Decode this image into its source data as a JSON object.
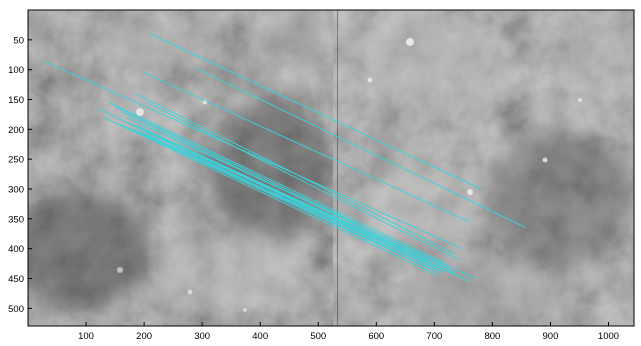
{
  "figure": {
    "x_ticks": [
      "100",
      "200",
      "300",
      "400",
      "500",
      "600",
      "700",
      "800",
      "900",
      "1000"
    ],
    "y_ticks": [
      "50",
      "100",
      "150",
      "200",
      "250",
      "300",
      "350",
      "400",
      "450",
      "500"
    ],
    "colors": {
      "match_line": "#3fd0d8",
      "axes": "#000000",
      "background": "#ffffff"
    },
    "image_seam_x": 533,
    "match_count": 20,
    "matches": [
      {
        "from": [
          210,
          40
        ],
        "to": [
          780,
          300
        ]
      },
      {
        "from": [
          290,
          98
        ],
        "to": [
          858,
          365
        ]
      },
      {
        "from": [
          195,
          103
        ],
        "to": [
          760,
          355
        ]
      },
      {
        "from": [
          30,
          87
        ],
        "to": [
          748,
          400
        ]
      },
      {
        "from": [
          185,
          140
        ],
        "to": [
          738,
          410
        ]
      },
      {
        "from": [
          205,
          155
        ],
        "to": [
          745,
          420
        ]
      },
      {
        "from": [
          140,
          155
        ],
        "to": [
          720,
          425
        ]
      },
      {
        "from": [
          150,
          162
        ],
        "to": [
          725,
          432
        ]
      },
      {
        "from": [
          160,
          170
        ],
        "to": [
          735,
          440
        ]
      },
      {
        "from": [
          120,
          165
        ],
        "to": [
          705,
          440
        ]
      },
      {
        "from": [
          170,
          180
        ],
        "to": [
          770,
          450
        ]
      },
      {
        "from": [
          130,
          180
        ],
        "to": [
          705,
          445
        ]
      },
      {
        "from": [
          175,
          190
        ],
        "to": [
          740,
          445
        ]
      },
      {
        "from": [
          190,
          195
        ],
        "to": [
          760,
          455
        ]
      },
      {
        "from": [
          180,
          200
        ],
        "to": [
          715,
          440
        ]
      },
      {
        "from": [
          195,
          205
        ],
        "to": [
          700,
          430
        ]
      },
      {
        "from": [
          215,
          208
        ],
        "to": [
          710,
          435
        ]
      },
      {
        "from": [
          230,
          215
        ],
        "to": [
          690,
          420
        ]
      },
      {
        "from": [
          250,
          222
        ],
        "to": [
          680,
          415
        ]
      },
      {
        "from": [
          160,
          192
        ],
        "to": [
          690,
          432
        ]
      }
    ]
  }
}
